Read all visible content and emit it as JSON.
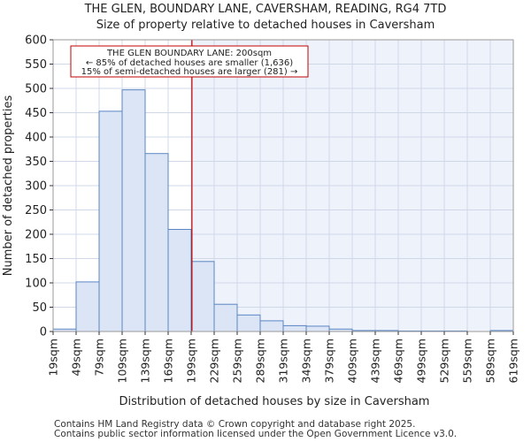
{
  "header": {
    "title": "THE GLEN, BOUNDARY LANE, CAVERSHAM, READING, RG4 7TD",
    "subtitle": "Size of property relative to detached houses in Caversham"
  },
  "footer": {
    "line1": "Contains HM Land Registry data © Crown copyright and database right 2025.",
    "line2": "Contains public sector information licensed under the Open Government Licence v3.0."
  },
  "colors": {
    "bar_fill": "#dbe5f5",
    "bar_stroke": "#5b86c4",
    "highlight_bg": "#eef2fb",
    "marker": "#c00000",
    "grid": "#d0d8e8"
  },
  "chart_data": {
    "type": "bar",
    "title": "Size of property relative to detached houses in Caversham",
    "xlabel": "Distribution of detached houses by size in Caversham",
    "ylabel": "Number of detached properties",
    "bin_edges": [
      19,
      49,
      79,
      109,
      139,
      169,
      199,
      229,
      259,
      289,
      319,
      349,
      379,
      409,
      439,
      469,
      499,
      529,
      559,
      589,
      619
    ],
    "tick_labels": [
      "19sqm",
      "49sqm",
      "79sqm",
      "109sqm",
      "139sqm",
      "169sqm",
      "199sqm",
      "229sqm",
      "259sqm",
      "289sqm",
      "319sqm",
      "349sqm",
      "379sqm",
      "409sqm",
      "439sqm",
      "469sqm",
      "499sqm",
      "529sqm",
      "559sqm",
      "589sqm",
      "619sqm"
    ],
    "values": [
      5,
      102,
      453,
      497,
      366,
      210,
      144,
      56,
      34,
      22,
      12,
      11,
      5,
      2,
      2,
      1,
      1,
      1,
      0,
      2
    ],
    "ylim": [
      0,
      600
    ],
    "yticks": [
      0,
      50,
      100,
      150,
      200,
      250,
      300,
      350,
      400,
      450,
      500,
      550,
      600
    ],
    "marker_value": 200,
    "grid": true,
    "annotation": {
      "line1": "THE GLEN BOUNDARY LANE: 200sqm",
      "line2": "← 85% of detached houses are smaller (1,636)",
      "line3": "15% of semi-detached houses are larger (281) →"
    }
  }
}
